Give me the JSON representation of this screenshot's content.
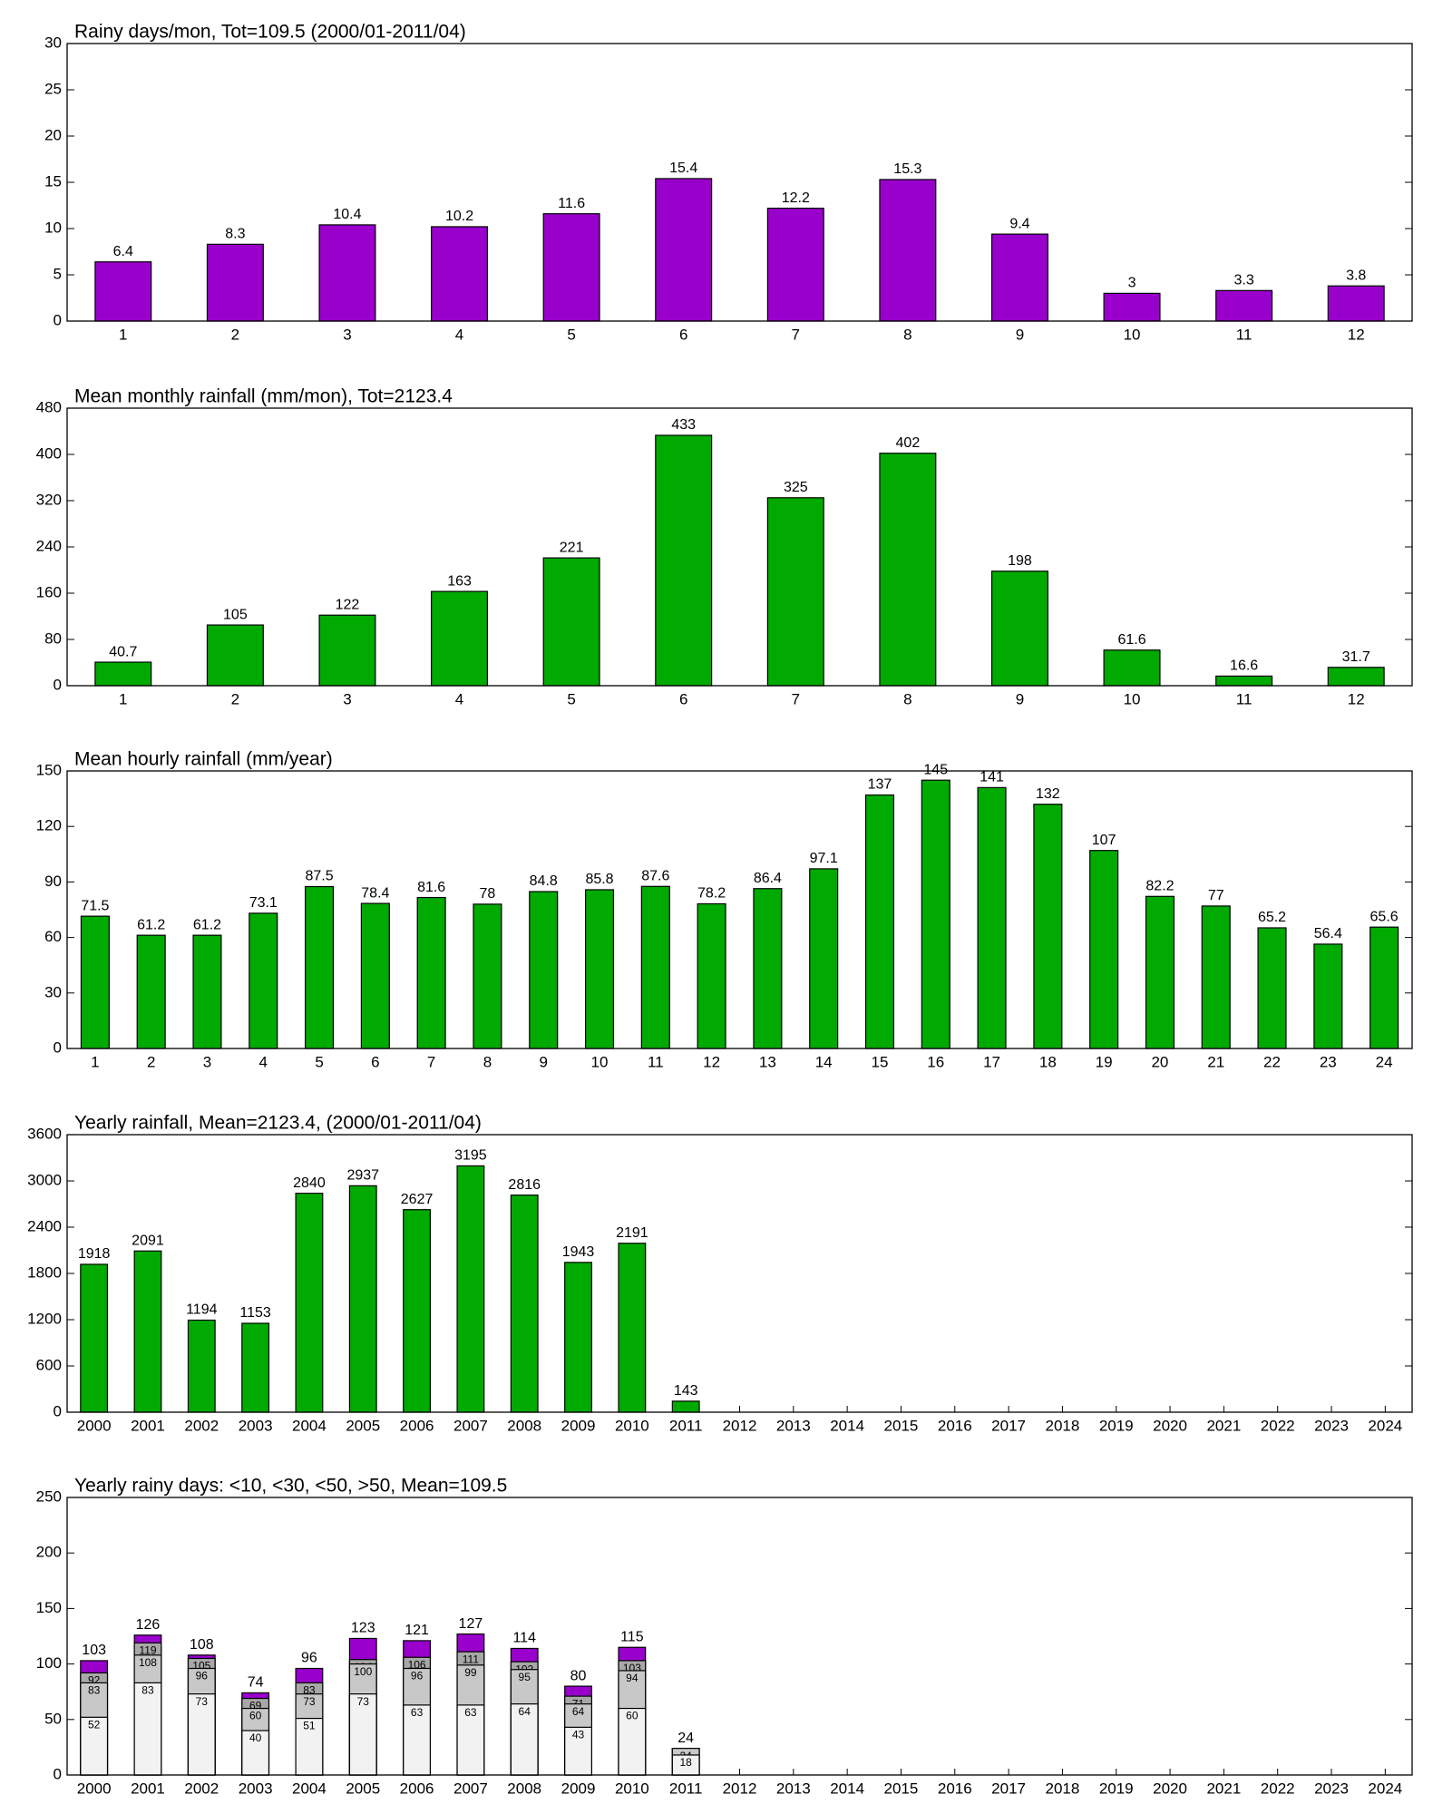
{
  "chart_data": [
    {
      "type": "bar",
      "title": "Rainy days/mon, Tot=109.5 (2000/01-2011/04)",
      "color": "#9900cc",
      "categories": [
        1,
        2,
        3,
        4,
        5,
        6,
        7,
        8,
        9,
        10,
        11,
        12
      ],
      "values": [
        6.4,
        8.3,
        10.4,
        10.2,
        11.6,
        15.4,
        12.2,
        15.3,
        9.4,
        3,
        3.3,
        3.8
      ],
      "ylim": [
        0,
        30
      ],
      "yticks": [
        0,
        5,
        10,
        15,
        20,
        25,
        30
      ]
    },
    {
      "type": "bar",
      "title": "Mean monthly rainfall (mm/mon), Tot=2123.4",
      "color": "#00aa00",
      "categories": [
        1,
        2,
        3,
        4,
        5,
        6,
        7,
        8,
        9,
        10,
        11,
        12
      ],
      "values": [
        40.7,
        105,
        122,
        163,
        221,
        433,
        325,
        402,
        198,
        61.6,
        16.6,
        31.7
      ],
      "ylim": [
        0,
        480
      ],
      "yticks": [
        0,
        80,
        160,
        240,
        320,
        400,
        480
      ]
    },
    {
      "type": "bar",
      "title": "Mean hourly rainfall (mm/year)",
      "color": "#00aa00",
      "categories": [
        1,
        2,
        3,
        4,
        5,
        6,
        7,
        8,
        9,
        10,
        11,
        12,
        13,
        14,
        15,
        16,
        17,
        18,
        19,
        20,
        21,
        22,
        23,
        24
      ],
      "values": [
        71.5,
        61.2,
        61.2,
        73.1,
        87.5,
        78.4,
        81.6,
        78,
        84.8,
        85.8,
        87.6,
        78.2,
        86.4,
        97.1,
        137,
        145,
        141,
        132,
        107,
        82.2,
        77,
        65.2,
        56.4,
        65.6
      ],
      "ylim": [
        0,
        150
      ],
      "yticks": [
        0,
        30,
        60,
        90,
        120,
        150
      ]
    },
    {
      "type": "bar",
      "title": "Yearly rainfall, Mean=2123.4, (2000/01-2011/04)",
      "color": "#00aa00",
      "categories": [
        2000,
        2001,
        2002,
        2003,
        2004,
        2005,
        2006,
        2007,
        2008,
        2009,
        2010,
        2011,
        2012,
        2013,
        2014,
        2015,
        2016,
        2017,
        2018,
        2019,
        2020,
        2021,
        2022,
        2023,
        2024
      ],
      "values": [
        1918,
        2091,
        1194,
        1153,
        2840,
        2937,
        2627,
        3195,
        2816,
        1943,
        2191,
        143,
        null,
        null,
        null,
        null,
        null,
        null,
        null,
        null,
        null,
        null,
        null,
        null,
        null
      ],
      "ylim": [
        0,
        3600
      ],
      "yticks": [
        0,
        600,
        1200,
        1800,
        2400,
        3000,
        3600
      ]
    },
    {
      "type": "bar",
      "title": "Yearly rainy days: <10, <30, <50, >50, Mean=109.5",
      "categories": [
        2000,
        2001,
        2002,
        2003,
        2004,
        2005,
        2006,
        2007,
        2008,
        2009,
        2010,
        2011,
        2012,
        2013,
        2014,
        2015,
        2016,
        2017,
        2018,
        2019,
        2020,
        2021,
        2022,
        2023,
        2024
      ],
      "series": [
        {
          "color": "#9900cc",
          "values": [
            103,
            126,
            108,
            74,
            96,
            123,
            121,
            127,
            114,
            80,
            115,
            24,
            null,
            null,
            null,
            null,
            null,
            null,
            null,
            null,
            null,
            null,
            null,
            null,
            null
          ]
        },
        {
          "color": "#a8a8a8",
          "values": [
            92,
            119,
            105,
            69,
            83,
            104,
            106,
            111,
            102,
            71,
            103,
            24,
            null,
            null,
            null,
            null,
            null,
            null,
            null,
            null,
            null,
            null,
            null,
            null,
            null
          ]
        },
        {
          "color": "#c8c8c8",
          "values": [
            83,
            108,
            96,
            60,
            73,
            100,
            96,
            99,
            95,
            64,
            94,
            24,
            null,
            null,
            null,
            null,
            null,
            null,
            null,
            null,
            null,
            null,
            null,
            null,
            null
          ]
        },
        {
          "color": "#f2f2f2",
          "values": [
            52,
            83,
            73,
            40,
            51,
            73,
            63,
            63,
            64,
            43,
            60,
            18,
            null,
            null,
            null,
            null,
            null,
            null,
            null,
            null,
            null,
            null,
            null,
            null,
            null
          ]
        }
      ],
      "ylim": [
        0,
        250
      ],
      "yticks": [
        0,
        50,
        100,
        150,
        200,
        250
      ]
    }
  ]
}
